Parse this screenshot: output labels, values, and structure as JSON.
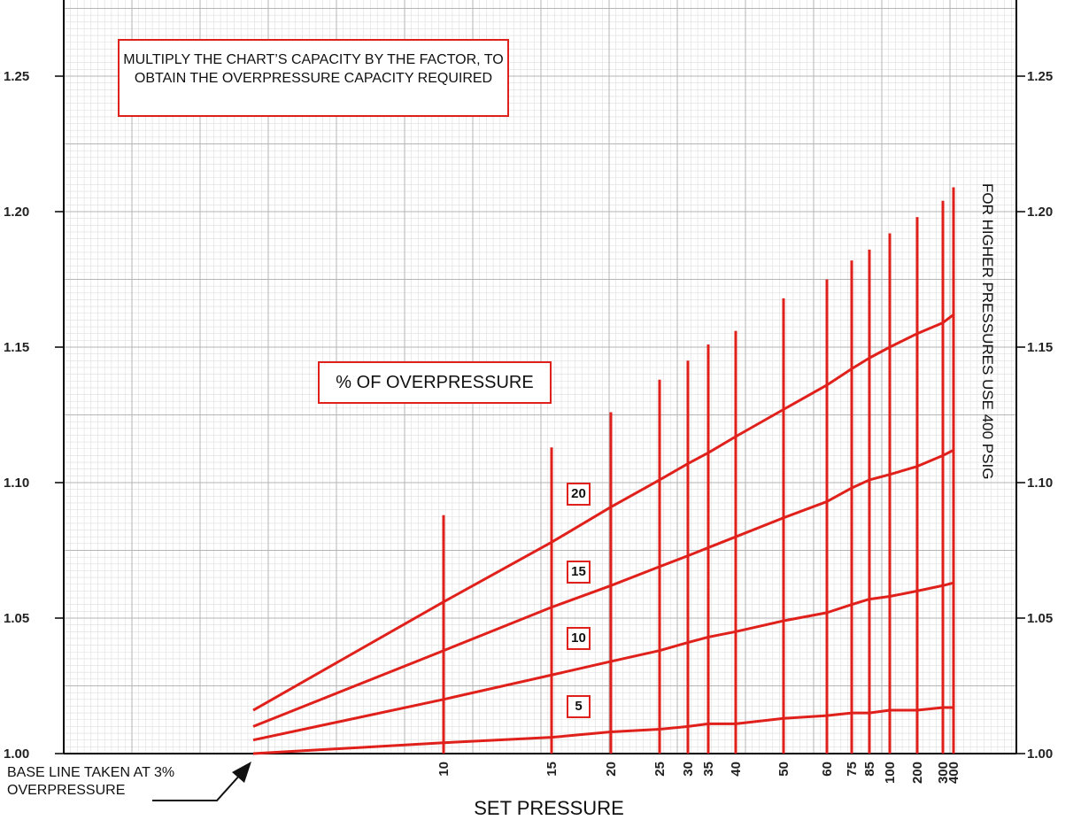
{
  "chart_data": {
    "type": "line",
    "title": "",
    "xlabel": "SET PRESSURE",
    "ylabel": "",
    "ylim": [
      1.0,
      1.27
    ],
    "y_ticks": [
      1.0,
      1.05,
      1.1,
      1.15,
      1.2,
      1.25
    ],
    "y_tick_labels": [
      "1.00",
      "1.05",
      "1.10",
      "1.15",
      "1.20",
      "1.25"
    ],
    "x_ticks": [
      10,
      15,
      20,
      25,
      30,
      35,
      40,
      50,
      60,
      75,
      85,
      100,
      200,
      300,
      400
    ],
    "x_tick_labels": [
      "10",
      "15",
      "20",
      "25",
      "30",
      "35",
      "40",
      "50",
      "60",
      "75",
      "85",
      "100",
      "200",
      "300",
      "400"
    ],
    "grid": true,
    "notes": {
      "multiply": "MULTIPLY THE CHART’S CAPACITY BY THE FACTOR, TO OBTAIN THE OVERPRESSURE CAPACITY REQUIRED",
      "overpressure_title": "% OF OVERPRESSURE",
      "side": "FOR HIGHER PRESSURES USE 400 PSIG",
      "baseline_line1": "BASE LINE TAKEN AT 3%",
      "baseline_line2": "OVERPRESSURE"
    },
    "lines_start_factor": [
      1.0,
      1.005,
      1.01,
      1.016
    ],
    "vertical_line_tops": [
      1.088,
      1.113,
      1.126,
      1.138,
      1.145,
      1.151,
      1.156,
      1.168,
      1.175,
      1.182,
      1.186,
      1.192,
      1.198,
      1.204,
      1.209
    ],
    "series": [
      {
        "name": "5",
        "x": [
          10,
          15,
          20,
          25,
          30,
          35,
          40,
          50,
          60,
          75,
          85,
          100,
          200,
          300,
          400
        ],
        "values": [
          1.004,
          1.006,
          1.008,
          1.009,
          1.01,
          1.011,
          1.011,
          1.013,
          1.014,
          1.015,
          1.015,
          1.016,
          1.016,
          1.017,
          1.017
        ]
      },
      {
        "name": "10",
        "x": [
          10,
          15,
          20,
          25,
          30,
          35,
          40,
          50,
          60,
          75,
          85,
          100,
          200,
          300,
          400
        ],
        "values": [
          1.02,
          1.029,
          1.034,
          1.038,
          1.041,
          1.043,
          1.045,
          1.049,
          1.052,
          1.055,
          1.057,
          1.058,
          1.06,
          1.062,
          1.063
        ]
      },
      {
        "name": "15",
        "x": [
          10,
          15,
          20,
          25,
          30,
          35,
          40,
          50,
          60,
          75,
          85,
          100,
          200,
          300,
          400
        ],
        "values": [
          1.038,
          1.054,
          1.062,
          1.069,
          1.073,
          1.076,
          1.08,
          1.087,
          1.093,
          1.098,
          1.101,
          1.103,
          1.106,
          1.11,
          1.112
        ]
      },
      {
        "name": "20",
        "x": [
          10,
          15,
          20,
          25,
          30,
          35,
          40,
          50,
          60,
          75,
          85,
          100,
          200,
          300,
          400
        ],
        "values": [
          1.056,
          1.078,
          1.091,
          1.101,
          1.107,
          1.111,
          1.117,
          1.127,
          1.136,
          1.142,
          1.146,
          1.15,
          1.155,
          1.159,
          1.162
        ]
      }
    ],
    "colors": {
      "line": "#e0201b",
      "grid_major": "#b5b5b5",
      "grid_minor": "#dedede",
      "axis": "#000000"
    }
  }
}
